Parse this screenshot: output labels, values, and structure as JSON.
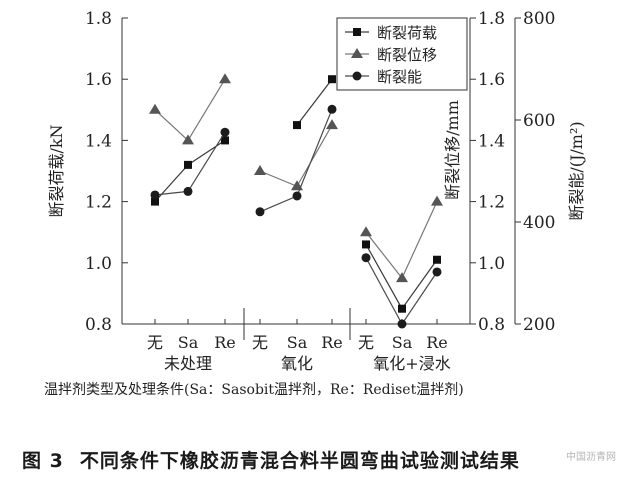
{
  "chart_data": {
    "type": "line",
    "categories": [
      "无",
      "Sa",
      "Re",
      "无",
      "Sa",
      "Re",
      "无",
      "Sa",
      "Re"
    ],
    "groups": [
      "未处理",
      "氧化",
      "氧化+浸水"
    ],
    "xlabel": "温拌剂类型及处理条件(Sa：Sasobit温拌剂，Re：Rediset温拌剂)",
    "axes": {
      "left": {
        "label": "断裂荷载/kN",
        "ylim": [
          0.8,
          1.8
        ],
        "ticks": [
          "0.8",
          "1.0",
          "1.2",
          "1.4",
          "1.6",
          "1.8"
        ]
      },
      "mid": {
        "label": "断裂位移/mm",
        "ylim": [
          0.8,
          1.8
        ],
        "ticks": [
          "0.8",
          "1.0",
          "1.2",
          "1.4",
          "1.6",
          "1.8"
        ]
      },
      "right": {
        "label": "断裂能/(J/m²)",
        "ylim": [
          200,
          800
        ],
        "ticks": [
          "200",
          "400",
          "600",
          "800"
        ]
      }
    },
    "series": [
      {
        "name": "断裂荷载",
        "marker": "square",
        "axis": "left",
        "values": [
          [
            1.2,
            1.32,
            1.4
          ],
          [
            null,
            1.45,
            1.6
          ],
          [
            1.06,
            0.85,
            1.01
          ]
        ]
      },
      {
        "name": "断裂位移",
        "marker": "triangle",
        "axis": "mid",
        "values": [
          [
            1.5,
            1.4,
            1.6
          ],
          [
            1.3,
            1.25,
            1.45
          ],
          [
            1.1,
            0.95,
            1.2
          ]
        ]
      },
      {
        "name": "断裂能",
        "marker": "circle",
        "axis": "right",
        "values": [
          [
            453,
            460,
            576
          ],
          [
            420,
            451,
            621
          ],
          [
            330,
            200,
            302
          ]
        ]
      }
    ],
    "legend_position": "top-right",
    "grid": false
  },
  "caption": {
    "number": "图 3",
    "text": "不同条件下橡胶沥青混合料半圆弯曲试验测试结果"
  },
  "watermark": "中国沥青网"
}
